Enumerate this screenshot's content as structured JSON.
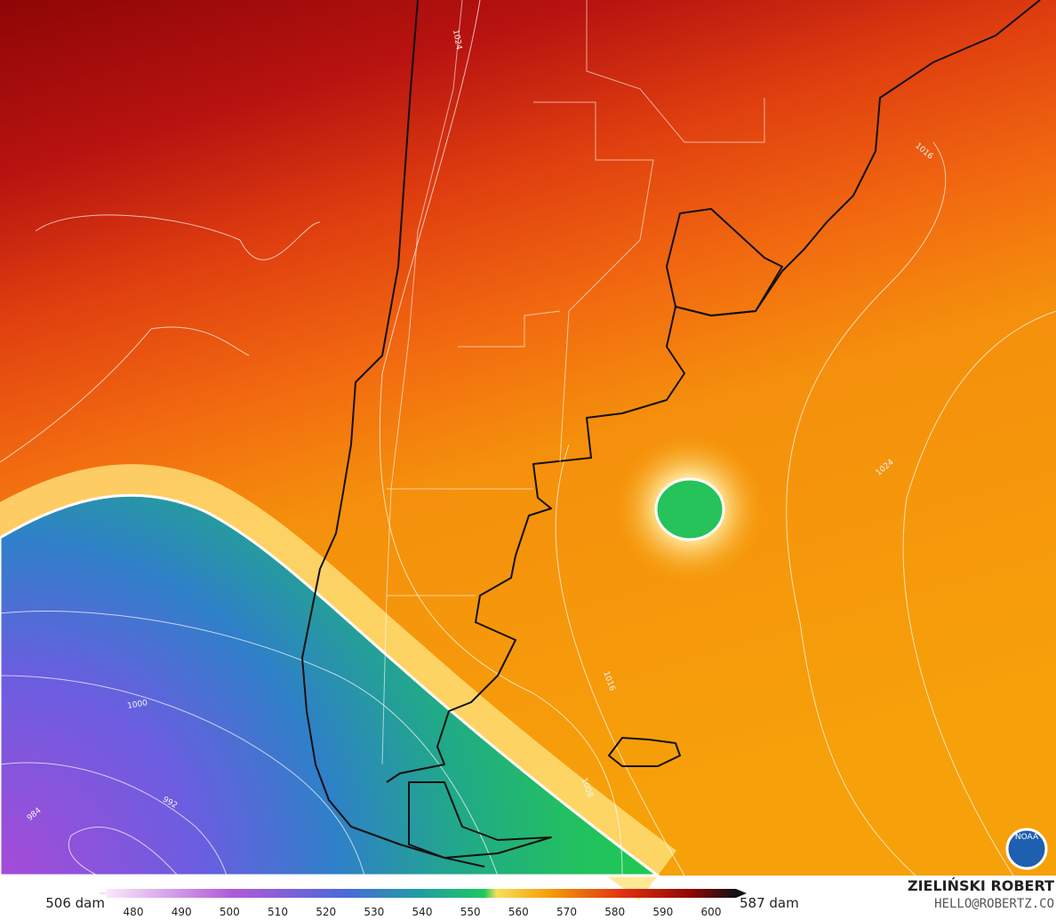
{
  "map": {
    "contour_labels": [
      "1024",
      "1016",
      "1024",
      "1016",
      "1008",
      "1000",
      "992",
      "984"
    ],
    "logo": "NOAA"
  },
  "colorbar": {
    "min_label": "506 dam",
    "max_label": "587 dam",
    "ticks": [
      "480",
      "490",
      "500",
      "510",
      "520",
      "530",
      "540",
      "550",
      "560",
      "570",
      "580",
      "590",
      "600"
    ]
  },
  "credit": {
    "name": "ZIELIŃSKI ROBERT",
    "contact": "HELLO@ROBERTZ.CO"
  }
}
